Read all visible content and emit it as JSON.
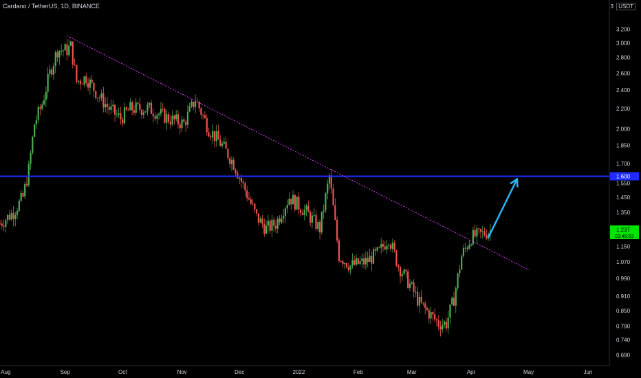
{
  "header": {
    "title": "Cardano / TetherUS, 1D, BINANCE",
    "currency_label": "USDT",
    "currency_count": "3"
  },
  "colors": {
    "up": "#26a69a",
    "up_bright": "#4caf50",
    "down": "#ef5350",
    "trendline": "#e040fb",
    "level_line": "#1e2dff",
    "arrow": "#29b6f6",
    "level_badge": "#1e2dff",
    "price_badge": "#00e500"
  },
  "chart_data": {
    "type": "candlestick",
    "title": "Cardano / TetherUS, 1D, BINANCE",
    "y_scale": "log",
    "ylim": [
      0.66,
      3.6
    ],
    "y_ticks": [
      "3.200",
      "3.000",
      "2.800",
      "2.600",
      "2.400",
      "2.200",
      "2.000",
      "1.850",
      "1.700",
      "1.550",
      "1.450",
      "1.350",
      "1.150",
      "1.070",
      "0.990",
      "0.910",
      "0.850",
      "0.790",
      "0.740",
      "0.690"
    ],
    "x_ticks": [
      "Aug",
      "Sep",
      "Oct",
      "Nov",
      "Dec",
      "2022",
      "Feb",
      "Mar",
      "Apr",
      "May",
      "Jun"
    ],
    "horizontal_level": {
      "value": 1.6,
      "label": "1.600"
    },
    "last_price": {
      "value": 1.237,
      "label": "1.237",
      "countdown": "09:46:53"
    },
    "trendline": {
      "from": {
        "date": "2021-09-02",
        "price": 3.1
      },
      "to": {
        "date": "2022-05-01",
        "price": 1.03
      }
    },
    "arrow": {
      "from": {
        "date": "2022-04-10",
        "price": 1.2
      },
      "to": {
        "date": "2022-04-25",
        "price": 1.58
      }
    },
    "price_path": [
      [
        "2021-07-29",
        1.28
      ],
      [
        "2021-08-05",
        1.35
      ],
      [
        "2021-08-10",
        1.45
      ],
      [
        "2021-08-13",
        1.65
      ],
      [
        "2021-08-16",
        2.05
      ],
      [
        "2021-08-20",
        2.25
      ],
      [
        "2021-08-24",
        2.6
      ],
      [
        "2021-08-28",
        2.9
      ],
      [
        "2021-09-02",
        2.9
      ],
      [
        "2021-09-04",
        2.95
      ],
      [
        "2021-09-07",
        2.5
      ],
      [
        "2021-09-12",
        2.55
      ],
      [
        "2021-09-18",
        2.35
      ],
      [
        "2021-09-24",
        2.2
      ],
      [
        "2021-09-30",
        2.1
      ],
      [
        "2021-10-05",
        2.2
      ],
      [
        "2021-10-15",
        2.2
      ],
      [
        "2021-10-25",
        2.1
      ],
      [
        "2021-11-02",
        2.05
      ],
      [
        "2021-11-08",
        2.3
      ],
      [
        "2021-11-15",
        2.0
      ],
      [
        "2021-11-22",
        1.85
      ],
      [
        "2021-11-28",
        1.7
      ],
      [
        "2021-12-04",
        1.5
      ],
      [
        "2021-12-10",
        1.32
      ],
      [
        "2021-12-15",
        1.25
      ],
      [
        "2021-12-20",
        1.28
      ],
      [
        "2021-12-27",
        1.45
      ],
      [
        "2022-01-05",
        1.35
      ],
      [
        "2022-01-12",
        1.25
      ],
      [
        "2022-01-17",
        1.6
      ],
      [
        "2022-01-22",
        1.1
      ],
      [
        "2022-01-28",
        1.05
      ],
      [
        "2022-02-05",
        1.07
      ],
      [
        "2022-02-12",
        1.12
      ],
      [
        "2022-02-17",
        1.2
      ],
      [
        "2022-02-22",
        1.05
      ],
      [
        "2022-02-28",
        0.96
      ],
      [
        "2022-03-05",
        0.88
      ],
      [
        "2022-03-10",
        0.84
      ],
      [
        "2022-03-15",
        0.8
      ],
      [
        "2022-03-19",
        0.8
      ],
      [
        "2022-03-23",
        0.9
      ],
      [
        "2022-03-27",
        1.1
      ],
      [
        "2022-04-01",
        1.2
      ],
      [
        "2022-04-07",
        1.22
      ],
      [
        "2022-04-11",
        1.237
      ]
    ]
  }
}
